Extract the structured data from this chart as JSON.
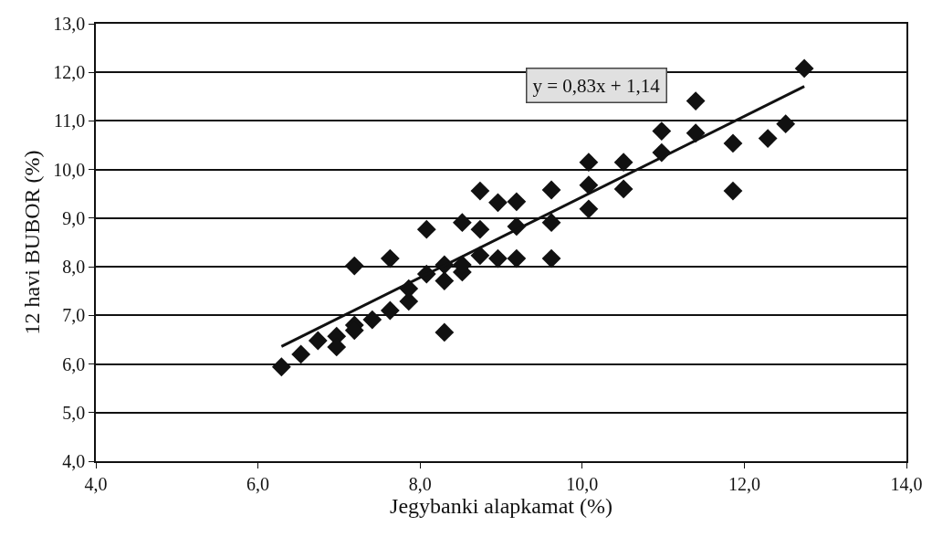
{
  "chart_data": {
    "type": "scatter",
    "xlabel": "Jegybanki alapkamat (%)",
    "ylabel": "12 havi BUBOR (%)",
    "annotations": [
      "y = 0,83x + 1,14"
    ],
    "marker": "diamond",
    "grid": "y",
    "xlim": [
      4,
      14
    ],
    "xticks": [
      {
        "value": 4,
        "label": "4,0"
      },
      {
        "value": 6,
        "label": "6,0"
      },
      {
        "value": 8,
        "label": "8,0"
      },
      {
        "value": 10,
        "label": "10,0"
      },
      {
        "value": 12,
        "label": "12,0"
      },
      {
        "value": 14,
        "label": "14,0"
      }
    ],
    "ylim": [
      4,
      13
    ],
    "yticks": [
      {
        "value": 4,
        "label": "4,0"
      },
      {
        "value": 5,
        "label": "5,0"
      },
      {
        "value": 6,
        "label": "6,0"
      },
      {
        "value": 7,
        "label": "7,0"
      },
      {
        "value": 8,
        "label": "8,0"
      },
      {
        "value": 9,
        "label": "9,0"
      },
      {
        "value": 10,
        "label": "10,0"
      },
      {
        "value": 11,
        "label": "11,0"
      },
      {
        "value": 12,
        "label": "12,0"
      },
      {
        "value": 13,
        "label": "13,0"
      }
    ],
    "series": [
      {
        "color": "#111111",
        "x": [
          6.29,
          6.53,
          6.74,
          6.97,
          6.97,
          7.19,
          7.19,
          7.19,
          7.41,
          7.63,
          7.63,
          7.86,
          7.86,
          8.08,
          8.08,
          8.3,
          8.3,
          8.3,
          8.52,
          8.52,
          8.52,
          8.74,
          8.74,
          8.74,
          8.96,
          8.96,
          9.19,
          9.19,
          9.19,
          9.62,
          9.62,
          9.62,
          10.08,
          10.08,
          10.08,
          10.51,
          10.51,
          10.98,
          10.98,
          11.4,
          11.4,
          11.86,
          11.86,
          12.29,
          12.51,
          12.74
        ],
        "values": [
          5.94,
          6.2,
          6.48,
          6.57,
          6.35,
          6.8,
          6.69,
          8.02,
          6.91,
          7.1,
          8.17,
          7.29,
          7.55,
          7.85,
          8.77,
          8.04,
          7.71,
          6.65,
          8.91,
          7.89,
          8.04,
          9.56,
          8.77,
          8.23,
          9.32,
          8.17,
          9.34,
          8.83,
          8.17,
          9.58,
          8.91,
          8.17,
          10.15,
          9.68,
          9.19,
          10.15,
          9.6,
          10.79,
          10.35,
          11.41,
          10.75,
          10.54,
          9.56,
          10.64,
          10.94,
          12.08
        ]
      },
      {
        "type": "line",
        "marker": "none",
        "color": "#111111",
        "x": [
          6.29,
          12.74
        ],
        "values": [
          6.36,
          11.71
        ]
      }
    ]
  }
}
